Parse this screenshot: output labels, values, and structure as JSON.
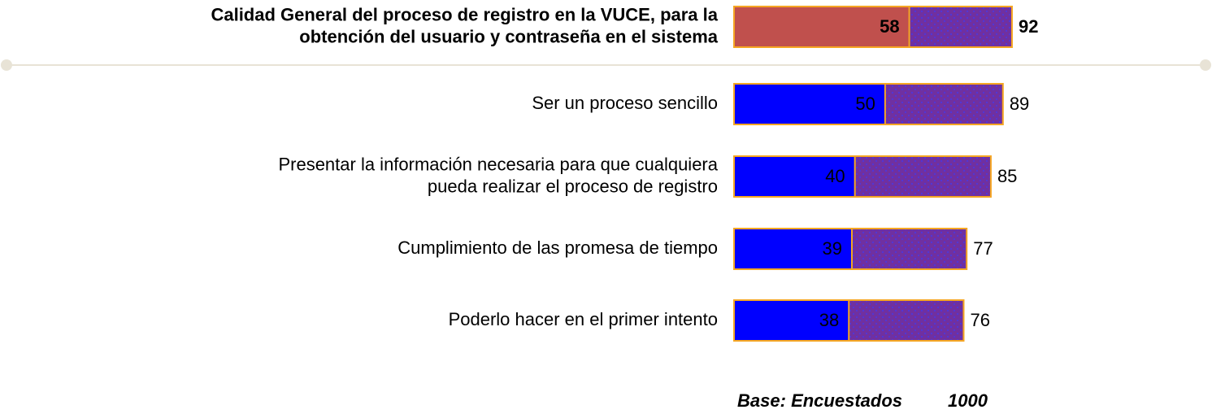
{
  "chart_data": {
    "type": "bar",
    "orientation": "horizontal",
    "categories": [
      [
        "Calidad General del proceso de registro en la VUCE, para la",
        "obtención del usuario y contraseña en el sistema"
      ],
      [
        "Ser un proceso sencillo"
      ],
      [
        "Presentar la información necesaria para que cualquiera",
        "pueda realizar el proceso de registro"
      ],
      [
        "Cumplimiento de las promesa de tiempo"
      ],
      [
        "Poderlo hacer en el primer intento"
      ]
    ],
    "series": [
      {
        "color": "#7030a0",
        "values": [
          92,
          89,
          85,
          77,
          76
        ]
      },
      {
        "color": "#0000ff",
        "values": [
          58,
          50,
          40,
          39,
          38
        ],
        "highlight": {
          "index": 0,
          "color": "#c0504d"
        }
      }
    ],
    "bar_border_color": "#f5a623",
    "footnote": {
      "label": "Base: Encuestados",
      "value": "1000"
    }
  }
}
